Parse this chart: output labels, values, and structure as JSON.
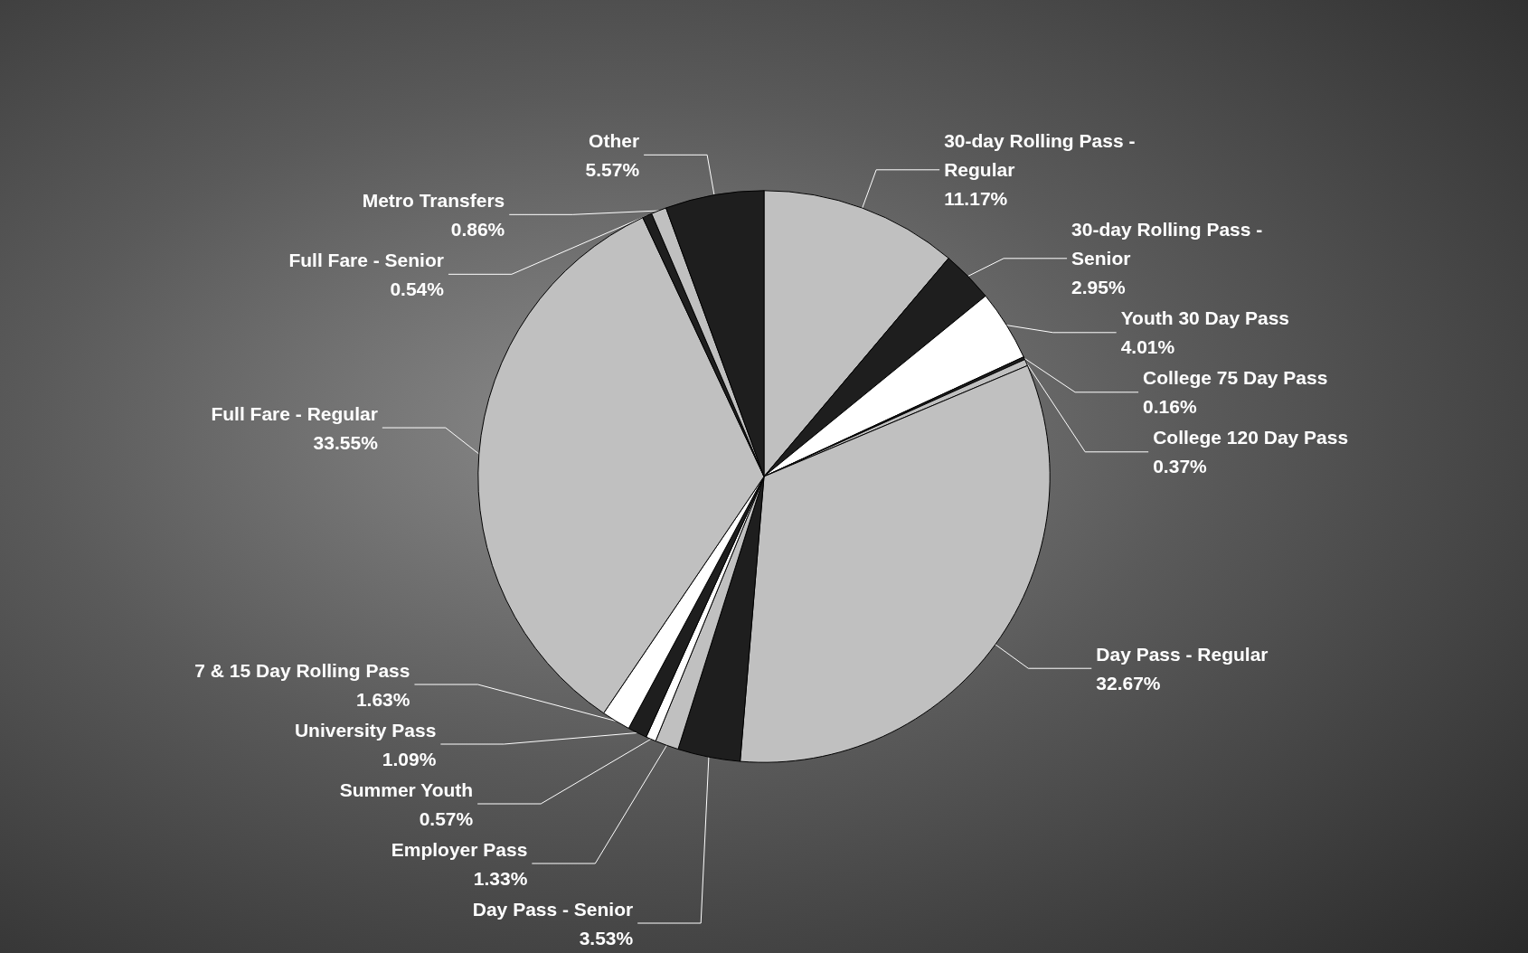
{
  "chart_data": {
    "type": "pie",
    "categories": [
      "30-day Rolling Pass - Regular",
      "30-day Rolling Pass - Senior",
      "Youth 30 Day Pass",
      "College 75 Day Pass",
      "College 120 Day Pass",
      "Day Pass - Regular",
      "Day Pass - Senior",
      "Employer Pass",
      "Summer Youth",
      "University Pass",
      "7 & 15 Day Rolling Pass",
      "Full Fare - Regular",
      "Full Fare - Senior",
      "Metro Transfers",
      "Other"
    ],
    "values": [
      11.17,
      2.95,
      4.01,
      0.16,
      0.37,
      32.67,
      3.53,
      1.33,
      0.57,
      1.09,
      1.63,
      33.55,
      0.54,
      0.86,
      5.57
    ],
    "value_labels": [
      "11.17%",
      "2.95%",
      "4.01%",
      "0.16%",
      "0.37%",
      "32.67%",
      "3.53%",
      "1.33%",
      "0.57%",
      "1.09%",
      "1.63%",
      "33.55%",
      "0.54%",
      "0.86%",
      "5.57%"
    ],
    "colors": [
      "#c0c0c0",
      "#1e1e1e",
      "#ffffff",
      "#1e1e1e",
      "#c0c0c0",
      "#c0c0c0",
      "#1e1e1e",
      "#c0c0c0",
      "#ffffff",
      "#1e1e1e",
      "#ffffff",
      "#c0c0c0",
      "#1e1e1e",
      "#c0c0c0",
      "#1e1e1e"
    ],
    "legend": false
  }
}
